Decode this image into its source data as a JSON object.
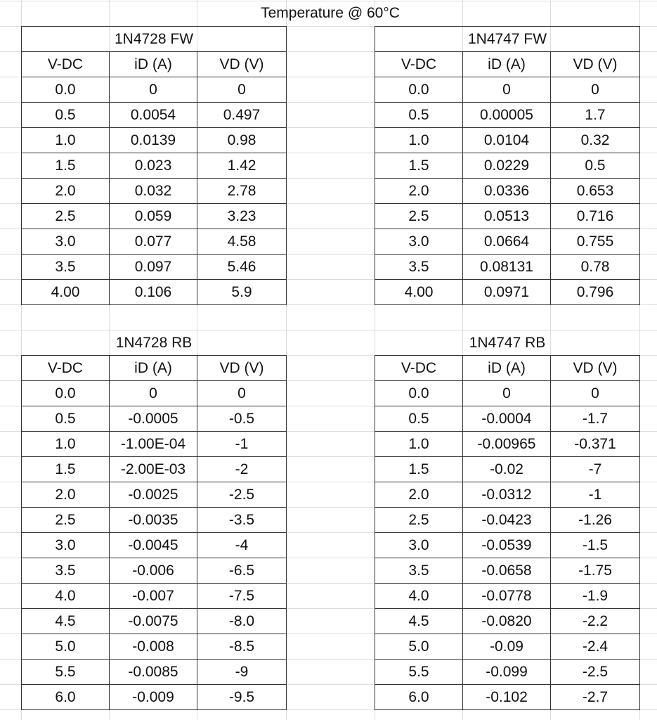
{
  "title": "Temperature @ 60°C",
  "tables": [
    {
      "title": "1N4728 FW",
      "headers": [
        "V-DC",
        "iD (A)",
        "VD (V)"
      ],
      "rows": [
        [
          "0.0",
          "0",
          "0"
        ],
        [
          "0.5",
          "0.0054",
          "0.497"
        ],
        [
          "1.0",
          "0.0139",
          "0.98"
        ],
        [
          "1.5",
          "0.023",
          "1.42"
        ],
        [
          "2.0",
          "0.032",
          "2.78"
        ],
        [
          "2.5",
          "0.059",
          "3.23"
        ],
        [
          "3.0",
          "0.077",
          "4.58"
        ],
        [
          "3.5",
          "0.097",
          "5.46"
        ],
        [
          "4.00",
          "0.106",
          "5.9"
        ]
      ]
    },
    {
      "title": "1N4747 FW",
      "headers": [
        "V-DC",
        "iD (A)",
        "VD (V)"
      ],
      "rows": [
        [
          "0.0",
          "0",
          "0"
        ],
        [
          "0.5",
          "0.00005",
          "1.7"
        ],
        [
          "1.0",
          "0.0104",
          "0.32"
        ],
        [
          "1.5",
          "0.0229",
          "0.5"
        ],
        [
          "2.0",
          "0.0336",
          "0.653"
        ],
        [
          "2.5",
          "0.0513",
          "0.716"
        ],
        [
          "3.0",
          "0.0664",
          "0.755"
        ],
        [
          "3.5",
          "0.08131",
          "0.78"
        ],
        [
          "4.00",
          "0.0971",
          "0.796"
        ]
      ]
    },
    {
      "title": "1N4728 RB",
      "headers": [
        "V-DC",
        "iD (A)",
        "VD (V)"
      ],
      "rows": [
        [
          "0.0",
          "0",
          "0"
        ],
        [
          "0.5",
          "-0.0005",
          "-0.5"
        ],
        [
          "1.0",
          "-1.00E-04",
          "-1"
        ],
        [
          "1.5",
          "-2.00E-03",
          "-2"
        ],
        [
          "2.0",
          "-0.0025",
          "-2.5"
        ],
        [
          "2.5",
          "-0.0035",
          "-3.5"
        ],
        [
          "3.0",
          "-0.0045",
          "-4"
        ],
        [
          "3.5",
          "-0.006",
          "-6.5"
        ],
        [
          "4.0",
          "-0.007",
          "-7.5"
        ],
        [
          "4.5",
          "-0.0075",
          "-8.0"
        ],
        [
          "5.0",
          "-0.008",
          "-8.5"
        ],
        [
          "5.5",
          "-0.0085",
          "-9"
        ],
        [
          "6.0",
          "-0.009",
          "-9.5"
        ]
      ]
    },
    {
      "title": "1N4747 RB",
      "headers": [
        "V-DC",
        "iD (A)",
        "VD (V)"
      ],
      "rows": [
        [
          "0.0",
          "0",
          "0"
        ],
        [
          "0.5",
          "-0.0004",
          "-1.7"
        ],
        [
          "1.0",
          "-0.00965",
          "-0.371"
        ],
        [
          "1.5",
          "-0.02",
          "-7"
        ],
        [
          "2.0",
          "-0.0312",
          "-1"
        ],
        [
          "2.5",
          "-0.0423",
          "-1.26"
        ],
        [
          "3.0",
          "-0.0539",
          "-1.5"
        ],
        [
          "3.5",
          "-0.0658",
          "-1.75"
        ],
        [
          "4.0",
          "-0.0778",
          "-1.9"
        ],
        [
          "4.5",
          "-0.0820",
          "-2.2"
        ],
        [
          "5.0",
          "-0.09",
          "-2.4"
        ],
        [
          "5.5",
          "-0.099",
          "-2.5"
        ],
        [
          "6.0",
          "-0.102",
          "-2.7"
        ]
      ]
    }
  ]
}
